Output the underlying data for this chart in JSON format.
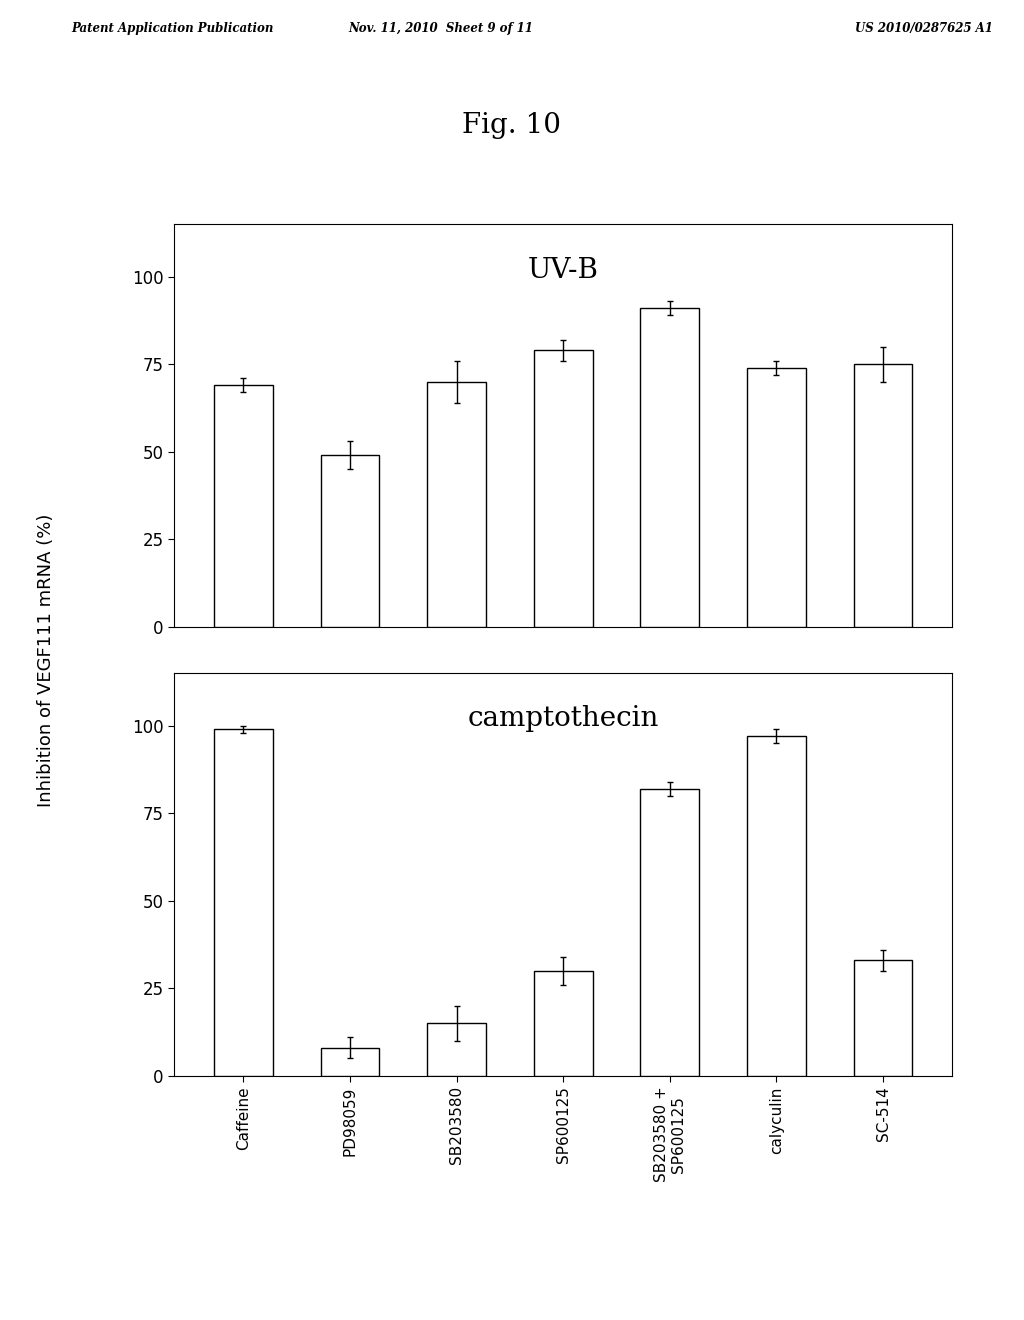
{
  "fig_title": "Fig. 10",
  "header_left": "Patent Application Publication",
  "header_center": "Nov. 11, 2010  Sheet 9 of 11",
  "header_right": "US 2010/0287625 A1",
  "ylabel": "Inhibition of VEGF111 mRNA (%)",
  "categories": [
    "Caffeine",
    "PD98059",
    "SB203580",
    "SP600125",
    "SB203580 +\nSP600125",
    "calyculin",
    "SC-514"
  ],
  "uvb_values": [
    69,
    49,
    70,
    79,
    91,
    74,
    75
  ],
  "uvb_errors": [
    2,
    4,
    6,
    3,
    2,
    2,
    5
  ],
  "camp_values": [
    99,
    8,
    15,
    30,
    82,
    97,
    33
  ],
  "camp_errors": [
    1,
    3,
    5,
    4,
    2,
    2,
    3
  ],
  "uvb_label": "UV-B",
  "camp_label": "camptothecin",
  "ylim": [
    0,
    115
  ],
  "yticks": [
    0,
    25,
    50,
    75,
    100
  ],
  "bar_color": "white",
  "bar_edgecolor": "black",
  "background_color": "white",
  "bar_width": 0.55
}
